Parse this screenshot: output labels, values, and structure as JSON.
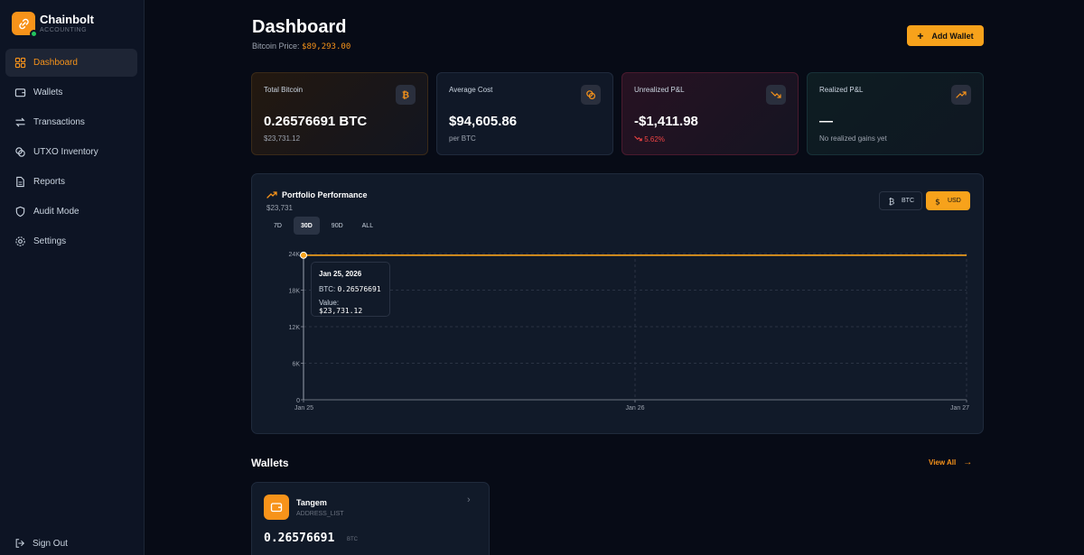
{
  "brand": {
    "name": "Chainbolt",
    "sub": "ACCOUNTING"
  },
  "sidebar": {
    "items": [
      {
        "label": "Dashboard",
        "icon": "grid-icon",
        "active": true
      },
      {
        "label": "Wallets",
        "icon": "wallet-icon"
      },
      {
        "label": "Transactions",
        "icon": "arrows-icon"
      },
      {
        "label": "UTXO Inventory",
        "icon": "coins-icon"
      },
      {
        "label": "Reports",
        "icon": "file-icon"
      },
      {
        "label": "Audit Mode",
        "icon": "shield-icon"
      },
      {
        "label": "Settings",
        "icon": "gear-icon"
      }
    ],
    "signout": "Sign Out"
  },
  "header": {
    "title": "Dashboard",
    "price_label": "Bitcoin Price:",
    "price_value": "$89,293.00",
    "add_wallet": "Add Wallet"
  },
  "cards": [
    {
      "label": "Total Bitcoin",
      "value": "0.26576691 BTC",
      "sub": "$23,731.12",
      "icon": "bitcoin-icon"
    },
    {
      "label": "Average Cost",
      "value": "$94,605.86",
      "sub": "per BTC",
      "icon": "coins-icon"
    },
    {
      "label": "Unrealized P&L",
      "value": "-$1,411.98",
      "sub": "5.62%",
      "icon": "trending-down-icon"
    },
    {
      "label": "Realized P&L",
      "value": "—",
      "sub": "No realized gains yet",
      "icon": "trending-up-icon"
    }
  ],
  "performance": {
    "title": "Portfolio Performance",
    "subtitle": "$23,731",
    "ranges": [
      "7D",
      "30D",
      "90D",
      "ALL"
    ],
    "active_range": "30D",
    "toggle_btc": "BTC",
    "toggle_usd": "USD",
    "tooltip": {
      "date": "Jan 25, 2026",
      "btc_label": "BTC:",
      "btc_value": "0.26576691",
      "value_label": "Value:",
      "value_value": "$23,731.12"
    }
  },
  "chart_data": {
    "type": "line",
    "title": "Portfolio Performance",
    "x": [
      "Jan 25",
      "Jan 26",
      "Jan 27"
    ],
    "series": [
      {
        "values": [
          23731,
          23731,
          23731
        ]
      }
    ],
    "yticks": [
      "0",
      "6K",
      "12K",
      "18K",
      "24K"
    ],
    "ylim": [
      0,
      24000
    ],
    "grid": true,
    "color": "#f7a21b"
  },
  "wallets": {
    "heading": "Wallets",
    "view_all": "View All",
    "items": [
      {
        "name": "Tangem",
        "type": "ADDRESS_LIST",
        "balance": "0.26576691",
        "unit": "BTC"
      }
    ]
  }
}
